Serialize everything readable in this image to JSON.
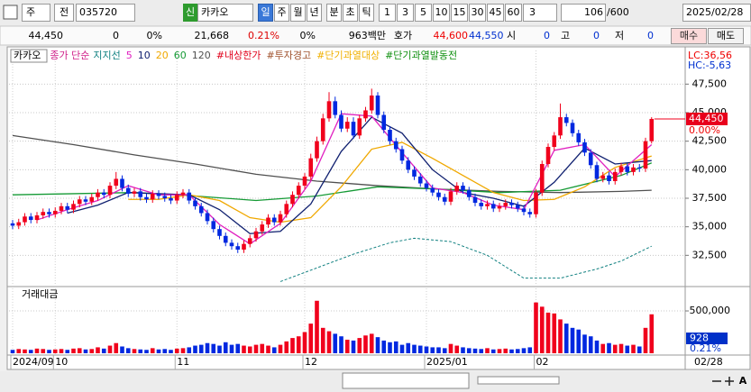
{
  "toolbar": {
    "market": "주",
    "prefix": "전",
    "code": "035720",
    "badge": "신",
    "name": "카카오",
    "periods": [
      "일",
      "주",
      "월",
      "년",
      "분",
      "초",
      "틱"
    ],
    "intervals": [
      "1",
      "3",
      "5",
      "10",
      "15",
      "30",
      "45",
      "60"
    ],
    "interval_value": "3",
    "count": "106",
    "count_max": "/600",
    "date": "2025/02/28"
  },
  "info": {
    "price": "44,450",
    "change": "0",
    "change_rate": "0%",
    "volume": "21,668",
    "turnover_rate": "0.21%",
    "rate2": "0%",
    "amount": "963백만",
    "quote_label": "호가",
    "ask": "44,600",
    "bid": "44,550",
    "open_label": "시",
    "open": "0",
    "high_label": "고",
    "high": "0",
    "low_label": "저",
    "low": "0",
    "buy": "매수",
    "sell": "매도"
  },
  "chart_data": {
    "type": "candlestick",
    "stock_label": "카카오",
    "ma_label": "종가 단순",
    "flags": [
      {
        "name": "#내상한가",
        "color": "#e0001a"
      },
      {
        "name": "#투자경고",
        "color": "#a0522d"
      },
      {
        "name": "#단기과열대상",
        "color": "#f0b000"
      },
      {
        "name": "#단기과열발동전",
        "color": "#109010"
      }
    ],
    "lc_label": "LC:36,56",
    "hc_label": "HC:-5,63",
    "price_tag_label": "44,450",
    "price_tag_change": "0.00%",
    "volume_title": "거래대금",
    "volume_tag": "928",
    "volume_tag_rate": "0.21%",
    "last_date": "02/28",
    "up_color": "#f0001c",
    "down_color": "#0028e0",
    "ylim": [
      30000,
      49500
    ],
    "yticks": [
      {
        "value": 32500,
        "label": "32,500"
      },
      {
        "value": 35000,
        "label": "35,000"
      },
      {
        "value": 37500,
        "label": "37,500"
      },
      {
        "value": 40000,
        "label": "40,000"
      },
      {
        "value": 42500,
        "label": "42,500"
      },
      {
        "value": 45000,
        "label": "45,000"
      },
      {
        "value": 47500,
        "label": "47,500"
      }
    ],
    "volume_ylim": [
      0,
      660000
    ],
    "volume_yticks": [
      {
        "value": 500000,
        "label": "500,000"
      }
    ],
    "categories": [
      "2024/09",
      null,
      null,
      null,
      null,
      null,
      null,
      "10",
      null,
      null,
      null,
      null,
      null,
      null,
      null,
      null,
      null,
      null,
      null,
      null,
      null,
      null,
      null,
      null,
      null,
      null,
      null,
      "11",
      null,
      null,
      null,
      null,
      null,
      null,
      null,
      null,
      null,
      null,
      null,
      null,
      null,
      null,
      null,
      null,
      null,
      null,
      null,
      null,
      "12",
      null,
      null,
      null,
      null,
      null,
      null,
      null,
      null,
      null,
      null,
      null,
      null,
      null,
      null,
      null,
      null,
      null,
      null,
      null,
      "2025/01",
      null,
      null,
      null,
      null,
      null,
      null,
      null,
      null,
      null,
      null,
      null,
      null,
      null,
      null,
      null,
      null,
      null,
      "02",
      null,
      null,
      null,
      null,
      null,
      null,
      null,
      null,
      null,
      null,
      null,
      null,
      null,
      null,
      null,
      null,
      null,
      null,
      null
    ],
    "open": [
      35300,
      35100,
      35400,
      35900,
      35600,
      36000,
      36300,
      36100,
      36400,
      36800,
      36500,
      37000,
      37400,
      37200,
      37600,
      38000,
      37800,
      38600,
      39200,
      38400,
      37900,
      38100,
      37600,
      37400,
      37900,
      37700,
      37500,
      37300,
      37800,
      38000,
      37300,
      36800,
      36200,
      35500,
      34800,
      34200,
      33600,
      33300,
      33000,
      33500,
      34000,
      34600,
      35200,
      35800,
      35400,
      36100,
      37000,
      37800,
      38600,
      39400,
      41000,
      42500,
      44500,
      46000,
      44800,
      43600,
      44200,
      43000,
      44500,
      45200,
      46500,
      44800,
      43500,
      42500,
      41800,
      40800,
      40000,
      39400,
      38800,
      38400,
      38000,
      37600,
      37200,
      38100,
      38600,
      38200,
      37600,
      37100,
      36800,
      37000,
      36600,
      36800,
      37100,
      36900,
      36600,
      36300,
      36100,
      38000,
      40500,
      42000,
      43000,
      44600,
      44100,
      43200,
      42400,
      41500,
      40400,
      39200,
      39500,
      39000,
      39800,
      40300,
      39800,
      40200,
      40100,
      42500
    ],
    "high": [
      35600,
      35700,
      36200,
      36200,
      36300,
      36600,
      36600,
      36700,
      37100,
      37100,
      37300,
      37700,
      37700,
      37900,
      38300,
      38300,
      38900,
      39800,
      39500,
      38700,
      38400,
      38400,
      37900,
      38200,
      38200,
      38000,
      37800,
      38100,
      38300,
      38300,
      37600,
      37100,
      36500,
      35800,
      35100,
      34500,
      33900,
      33600,
      33800,
      34300,
      34900,
      35500,
      36100,
      36100,
      36400,
      37300,
      38100,
      38900,
      39700,
      41400,
      42900,
      44900,
      46800,
      46400,
      45200,
      44600,
      44600,
      44800,
      45500,
      47100,
      46800,
      45100,
      43800,
      42800,
      42100,
      41100,
      40300,
      39700,
      39100,
      38700,
      38300,
      37900,
      38400,
      38900,
      38900,
      38500,
      37900,
      37400,
      37300,
      37300,
      37100,
      37400,
      37400,
      37200,
      36900,
      36600,
      38300,
      40800,
      42300,
      43300,
      45800,
      44900,
      44400,
      43500,
      42700,
      41800,
      40700,
      39800,
      39800,
      40100,
      40600,
      40600,
      40500,
      40500,
      42800,
      44600
    ],
    "low": [
      34800,
      34800,
      35100,
      35300,
      35300,
      35700,
      35800,
      35800,
      36100,
      36200,
      36200,
      36700,
      36900,
      36900,
      37300,
      37500,
      37500,
      38300,
      38100,
      37600,
      37600,
      37300,
      37100,
      37100,
      37400,
      37200,
      37000,
      37000,
      37500,
      37000,
      36500,
      35900,
      35200,
      34500,
      33900,
      33300,
      33000,
      32700,
      32700,
      33200,
      33700,
      34300,
      34900,
      35100,
      35100,
      35800,
      36700,
      37500,
      38300,
      39100,
      40700,
      42200,
      44200,
      44500,
      43300,
      43300,
      42700,
      42700,
      44200,
      44900,
      44500,
      43200,
      42200,
      41500,
      40500,
      39700,
      39100,
      38500,
      38100,
      37700,
      37300,
      36900,
      36900,
      37800,
      37900,
      37300,
      36800,
      36500,
      36500,
      36300,
      36300,
      36500,
      36600,
      36300,
      36000,
      35800,
      35800,
      37700,
      40200,
      41700,
      42700,
      43800,
      42900,
      42100,
      41200,
      40100,
      38900,
      38900,
      38700,
      38700,
      39500,
      39500,
      39500,
      39800,
      39800,
      42300
    ],
    "close": [
      35100,
      35400,
      35900,
      35600,
      36000,
      36300,
      36100,
      36400,
      36800,
      36500,
      37000,
      37400,
      37200,
      37600,
      38000,
      37800,
      38600,
      39200,
      38400,
      37900,
      38100,
      37600,
      37400,
      37900,
      37700,
      37500,
      37300,
      37800,
      38000,
      37300,
      36800,
      36200,
      35500,
      34800,
      34200,
      33600,
      33300,
      33000,
      33500,
      34000,
      34600,
      35200,
      35800,
      35400,
      36100,
      37000,
      37800,
      38600,
      39400,
      41000,
      42500,
      44500,
      46000,
      44800,
      43600,
      44200,
      43000,
      44500,
      45200,
      46500,
      44800,
      43500,
      42500,
      41800,
      40800,
      40000,
      39400,
      38800,
      38400,
      38000,
      37600,
      37200,
      38100,
      38600,
      38200,
      37600,
      37100,
      36800,
      37000,
      36600,
      36800,
      37100,
      36900,
      36600,
      36300,
      36100,
      38000,
      40500,
      42000,
      43000,
      44600,
      44100,
      43200,
      42400,
      41500,
      40400,
      39200,
      39500,
      39000,
      39800,
      40300,
      39800,
      40200,
      40100,
      42500,
      44450
    ],
    "volume": [
      40000,
      50000,
      45000,
      40000,
      55000,
      50000,
      40000,
      45000,
      50000,
      40000,
      55000,
      60000,
      45000,
      50000,
      70000,
      55000,
      90000,
      120000,
      80000,
      60000,
      50000,
      45000,
      40000,
      60000,
      45000,
      50000,
      40000,
      55000,
      60000,
      70000,
      90000,
      100000,
      120000,
      110000,
      90000,
      130000,
      100000,
      110000,
      90000,
      80000,
      100000,
      110000,
      90000,
      70000,
      100000,
      140000,
      180000,
      200000,
      250000,
      350000,
      620000,
      300000,
      260000,
      230000,
      200000,
      160000,
      150000,
      180000,
      210000,
      230000,
      190000,
      150000,
      130000,
      140000,
      100000,
      120000,
      100000,
      90000,
      80000,
      70000,
      70000,
      60000,
      110000,
      90000,
      70000,
      60000,
      55000,
      50000,
      60000,
      45000,
      50000,
      55000,
      45000,
      50000,
      60000,
      70000,
      600000,
      550000,
      480000,
      470000,
      400000,
      350000,
      300000,
      280000,
      220000,
      200000,
      150000,
      110000,
      120000,
      100000,
      110000,
      90000,
      100000,
      80000,
      300000,
      460000
    ],
    "series": [
      {
        "name": "120",
        "color": "#505050",
        "x": [
          0,
          10,
          20,
          30,
          40,
          50,
          60,
          70,
          80,
          90,
          100,
          105
        ],
        "values": [
          43000,
          42200,
          41300,
          40500,
          39600,
          39000,
          38600,
          38300,
          38100,
          38000,
          38100,
          38200
        ]
      },
      {
        "name": "60",
        "color": "#159a35",
        "x": [
          0,
          10,
          20,
          30,
          40,
          50,
          60,
          70,
          80,
          90,
          100,
          105
        ],
        "values": [
          37800,
          37900,
          38000,
          37700,
          37300,
          37700,
          38500,
          38300,
          38000,
          38200,
          39500,
          40600
        ]
      },
      {
        "name": "20",
        "color": "#f0a800",
        "x": [
          19,
          24,
          29,
          34,
          39,
          44,
          49,
          54,
          59,
          64,
          69,
          74,
          79,
          84,
          89,
          94,
          99,
          105
        ],
        "values": [
          37400,
          37400,
          37800,
          37300,
          35800,
          35400,
          35800,
          38500,
          41800,
          42400,
          41000,
          39500,
          38000,
          37300,
          37400,
          38500,
          40200,
          41200
        ]
      },
      {
        "name": "10",
        "color": "#102070",
        "x": [
          9,
          14,
          19,
          24,
          29,
          34,
          39,
          44,
          49,
          54,
          59,
          64,
          69,
          74,
          79,
          84,
          89,
          94,
          99,
          105
        ],
        "values": [
          36200,
          36900,
          38000,
          37900,
          37800,
          36500,
          34400,
          34600,
          37000,
          41600,
          44600,
          43200,
          40000,
          38000,
          37500,
          36800,
          38900,
          41900,
          40500,
          40800
        ]
      },
      {
        "name": "5",
        "color": "#e020c0",
        "x": [
          4,
          9,
          14,
          19,
          24,
          29,
          34,
          39,
          44,
          49,
          54,
          59,
          64,
          69,
          74,
          79,
          84,
          89,
          94,
          99,
          105
        ],
        "values": [
          35600,
          36500,
          37300,
          38600,
          37800,
          37800,
          35200,
          33500,
          35300,
          39000,
          44900,
          44700,
          41500,
          38400,
          38000,
          36900,
          36500,
          41700,
          42200,
          39400,
          42200
        ]
      },
      {
        "name": "지지선",
        "color": "#108080",
        "style": "dashed",
        "x": [
          44,
          50,
          56,
          62,
          66,
          72,
          78,
          84,
          90,
          96,
          100,
          105
        ],
        "values": [
          30200,
          31400,
          32600,
          33600,
          34000,
          33700,
          32500,
          30500,
          30500,
          31300,
          32000,
          33300
        ]
      }
    ],
    "grid": true
  },
  "bottom": {
    "zoom_label": "A"
  }
}
